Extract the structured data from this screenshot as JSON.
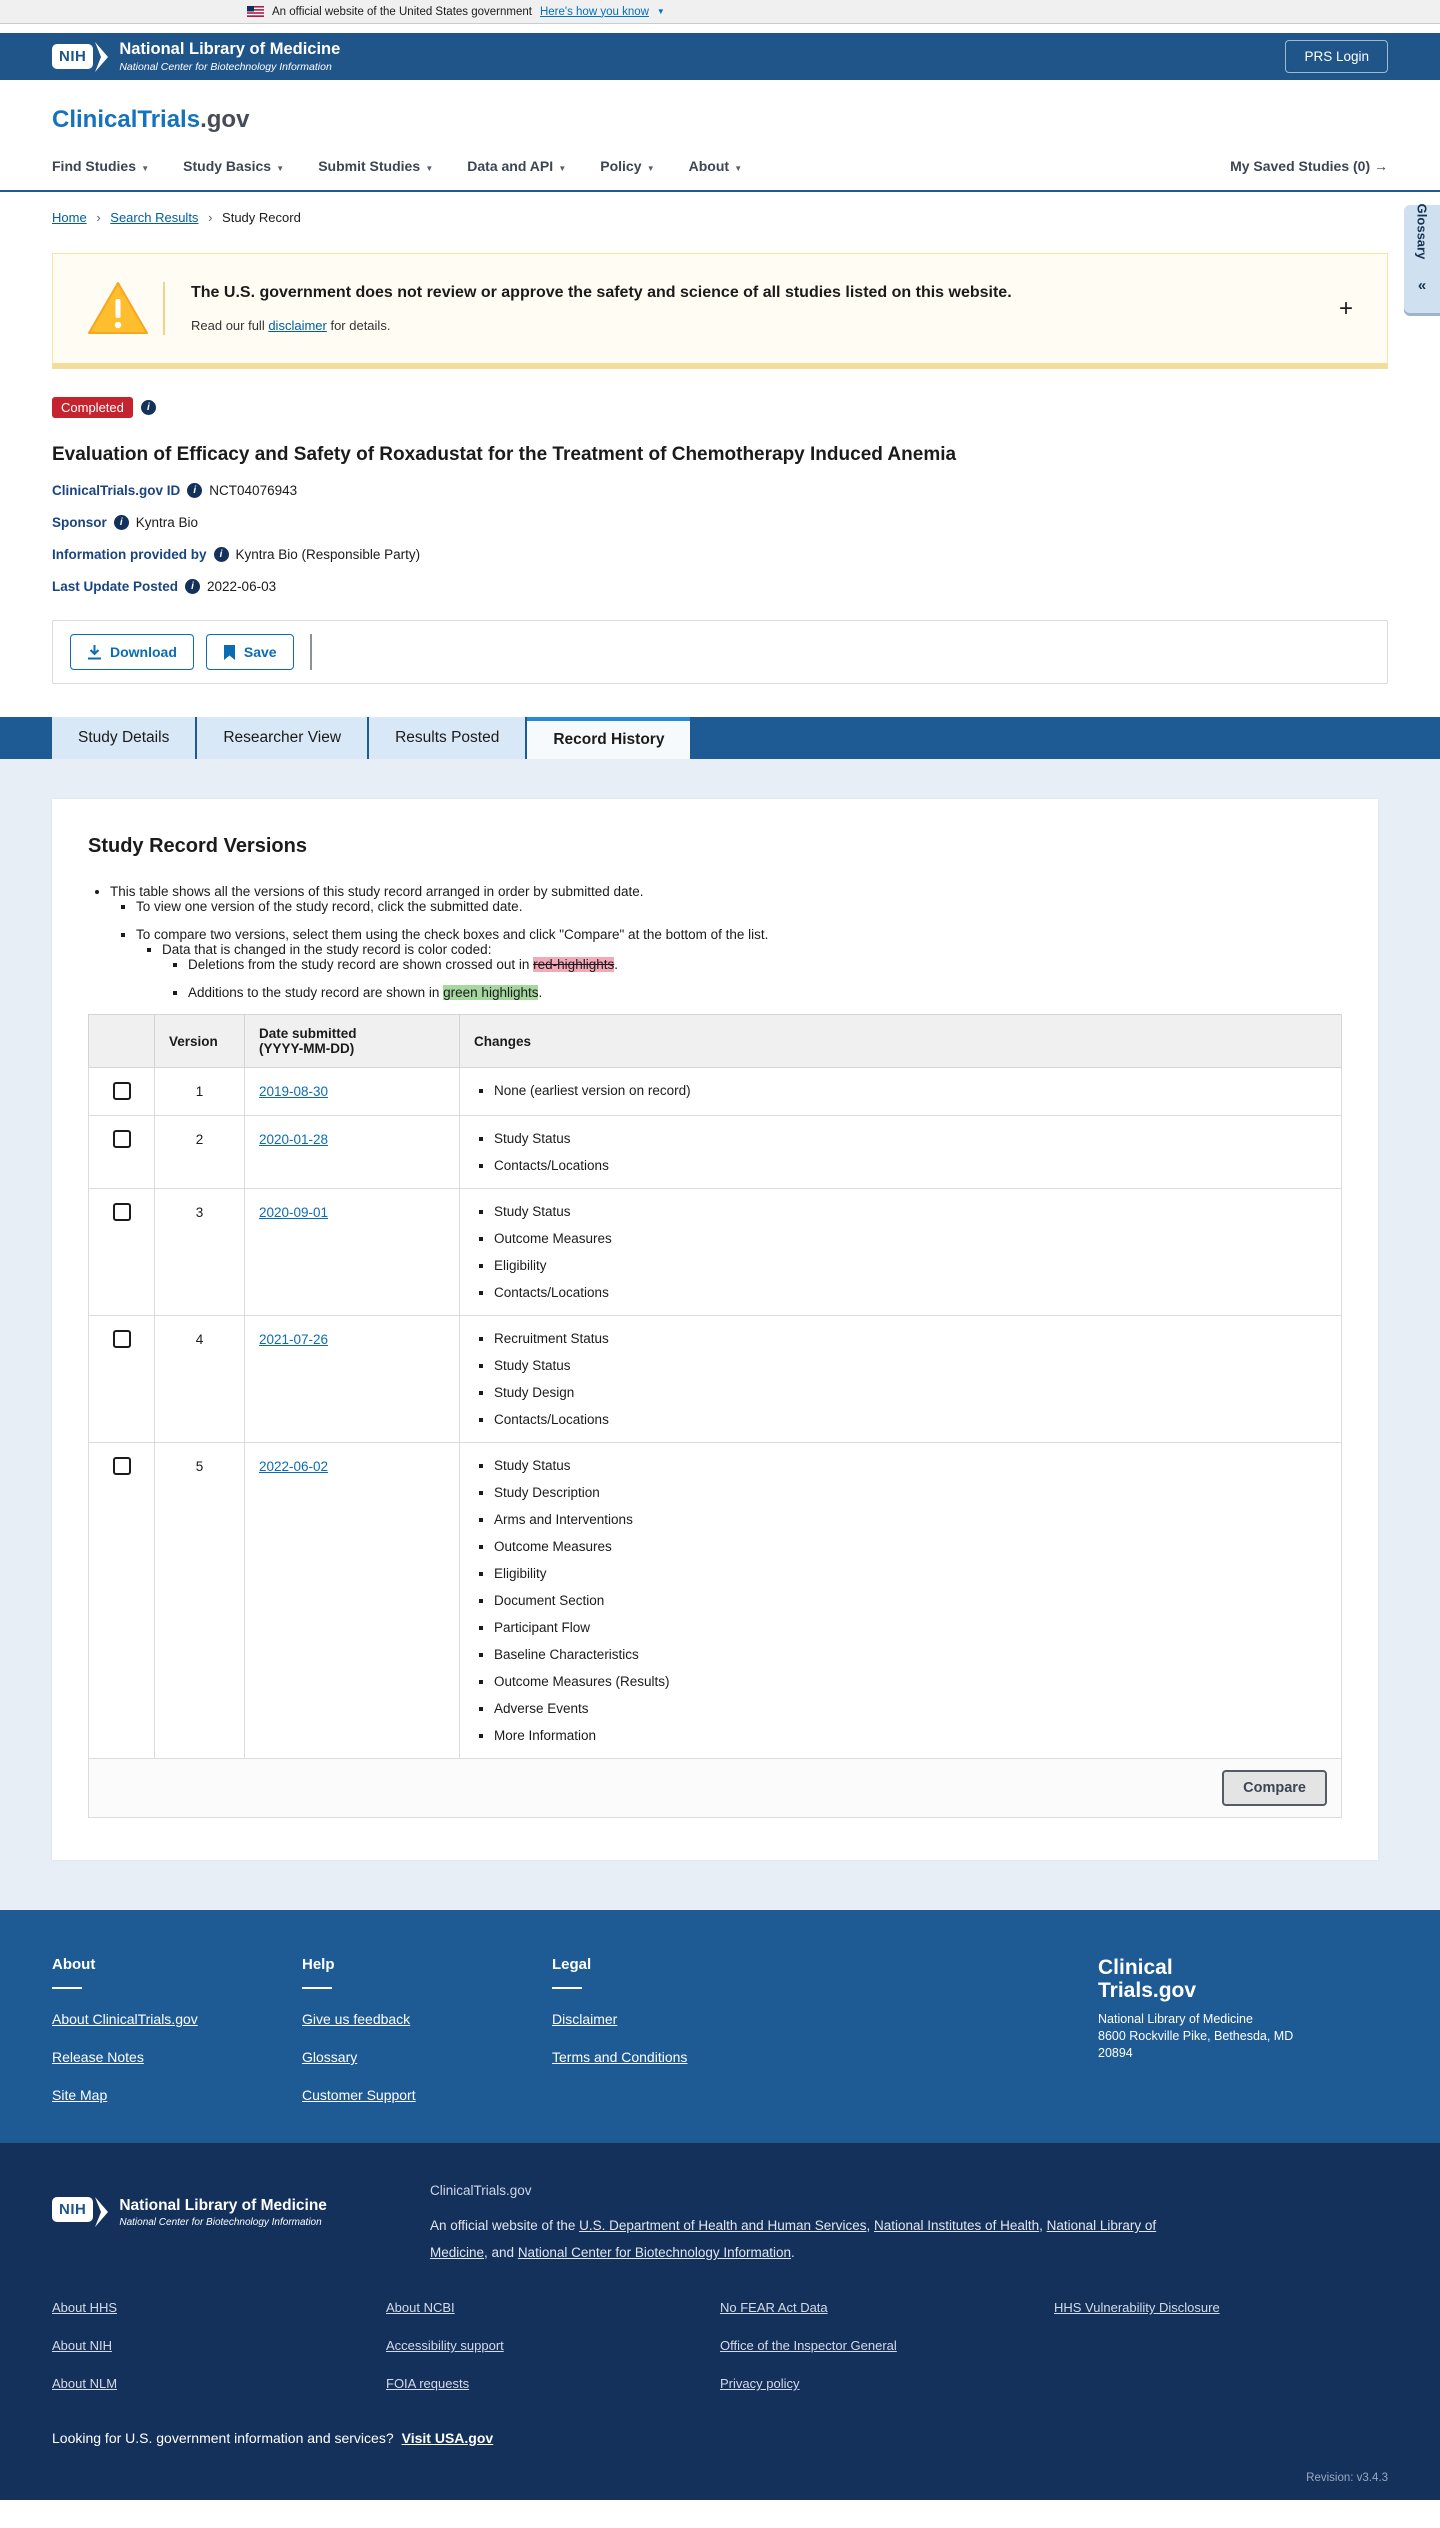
{
  "banner": {
    "text": "An official website of the United States government",
    "link": "Here's how you know"
  },
  "header": {
    "nih": "NIH",
    "org": "National Library of Medicine",
    "org_sub": "National Center for Biotechnology Information",
    "prs_login": "PRS Login"
  },
  "brand": {
    "name": "ClinicalTrials",
    "tld": ".gov"
  },
  "nav": {
    "items": [
      "Find Studies",
      "Study Basics",
      "Submit Studies",
      "Data and API",
      "Policy",
      "About"
    ],
    "saved": "My Saved Studies (0)",
    "saved_arrow": "→"
  },
  "breadcrumb": {
    "home": "Home",
    "search": "Search Results",
    "current": "Study Record"
  },
  "glossary": {
    "label": "Glossary",
    "collapse": "«"
  },
  "warning": {
    "title": "The U.S. government does not review or approve the safety and science of all studies listed on this website.",
    "body_pre": "Read our full ",
    "link": "disclaimer",
    "body_post": " for details.",
    "expand": "+"
  },
  "study": {
    "status": "Completed",
    "title": "Evaluation of Efficacy and Safety of Roxadustat for the Treatment of Chemotherapy Induced Anemia",
    "meta": [
      {
        "label": "ClinicalTrials.gov ID",
        "value": "NCT04076943"
      },
      {
        "label": "Sponsor",
        "value": "Kyntra Bio"
      },
      {
        "label": "Information provided by",
        "value": "Kyntra Bio (Responsible Party)"
      },
      {
        "label": "Last Update Posted",
        "value": "2022-06-03"
      }
    ]
  },
  "actions": {
    "download": "Download",
    "save": "Save"
  },
  "tabs": [
    "Study Details",
    "Researcher View",
    "Results Posted",
    "Record History"
  ],
  "versions": {
    "heading": "Study Record Versions",
    "intro": {
      "l1": "This table shows all the versions of this study record arranged in order by submitted date.",
      "l2a": "To view one version of the study record, click the submitted date.",
      "l2b": "To compare two versions, select them using the check boxes and click \"Compare\" at the bottom of the list.",
      "l3": "Data that is changed in the study record is color coded:",
      "l4a_pre": "Deletions from the study record are shown crossed out in ",
      "l4a_hl": "red-highlights",
      "l4a_post": ".",
      "l4b_pre": "Additions to the study record are shown in ",
      "l4b_hl": "green highlights",
      "l4b_post": "."
    },
    "table": {
      "headers": {
        "version": "Version",
        "date_line1": "Date submitted",
        "date_line2": "(YYYY-MM-DD)",
        "changes": "Changes"
      },
      "rows": [
        {
          "version": "1",
          "date": "2019-08-30",
          "changes": [
            "None (earliest version on record)"
          ]
        },
        {
          "version": "2",
          "date": "2020-01-28",
          "changes": [
            "Study Status",
            "Contacts/Locations"
          ]
        },
        {
          "version": "3",
          "date": "2020-09-01",
          "changes": [
            "Study Status",
            "Outcome Measures",
            "Eligibility",
            "Contacts/Locations"
          ]
        },
        {
          "version": "4",
          "date": "2021-07-26",
          "changes": [
            "Recruitment Status",
            "Study Status",
            "Study Design",
            "Contacts/Locations"
          ]
        },
        {
          "version": "5",
          "date": "2022-06-02",
          "changes": [
            "Study Status",
            "Study Description",
            "Arms and Interventions",
            "Outcome Measures",
            "Eligibility",
            "Document Section",
            "Participant Flow",
            "Baseline Characteristics",
            "Outcome Measures (Results)",
            "Adverse Events",
            "More Information"
          ]
        }
      ]
    },
    "compare": "Compare"
  },
  "footer": {
    "cols": [
      {
        "heading": "About",
        "links": [
          "About ClinicalTrials.gov",
          "Release Notes",
          "Site Map"
        ]
      },
      {
        "heading": "Help",
        "links": [
          "Give us feedback",
          "Glossary",
          "Customer Support"
        ]
      },
      {
        "heading": "Legal",
        "links": [
          "Disclaimer",
          "Terms and Conditions"
        ]
      }
    ],
    "brand_line1": "Clinical",
    "brand_line2": "Trials.gov",
    "addr1": "National Library of Medicine",
    "addr2": "8600 Rockville Pike, Bethesda, MD",
    "addr3": "20894"
  },
  "subfooter": {
    "site": "ClinicalTrials.gov",
    "official": {
      "pre": "An official website of the ",
      "l1": "U.S. Department of Health and Human Services",
      "c1": ", ",
      "l2": "National Institutes of Health",
      "c2": ", ",
      "l3": "National Library of Medicine",
      "c3": ", and ",
      "l4": "National Center for Biotechnology Information",
      "post": "."
    },
    "link_cols": [
      [
        "About HHS",
        "About NIH",
        "About NLM"
      ],
      [
        "About NCBI",
        "Accessibility support",
        "FOIA requests"
      ],
      [
        "No FEAR Act Data",
        "Office of the Inspector General",
        "Privacy policy"
      ],
      [
        "HHS Vulnerability Disclosure"
      ]
    ],
    "usa_q": "Looking for U.S. government information and services?",
    "usa_link": "Visit USA.gov",
    "revision": "Revision: v3.4.3"
  },
  "colors": {
    "header_blue": "#20558a",
    "tab_bar_blue": "#1e5b94",
    "footer_navy": "#14315c",
    "link_blue": "#0b6cb4",
    "badge_red": "#c5232d",
    "warning_yellow": "#ffbe2e",
    "highlight_red": "#f4a9b8",
    "highlight_green": "#a5d79f"
  }
}
